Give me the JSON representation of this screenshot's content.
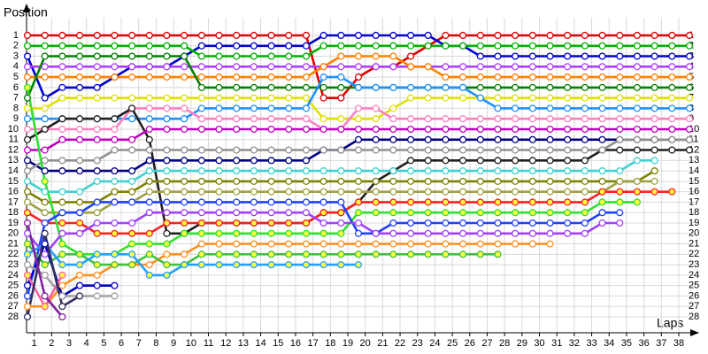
{
  "chart_data": {
    "type": "line",
    "y_label": "Position",
    "x_label": "Laps",
    "x": [
      0,
      1,
      2,
      3,
      4,
      5,
      6,
      7,
      8,
      9,
      10,
      11,
      12,
      13,
      14,
      15,
      16,
      17,
      18,
      19,
      20,
      21,
      22,
      23,
      24,
      25,
      26,
      27,
      28,
      29,
      30,
      31,
      32,
      33,
      34,
      35,
      36,
      37,
      38
    ],
    "xlim": [
      0,
      38
    ],
    "ylim": [
      0,
      29.4
    ],
    "y_reversed": true,
    "grid": true,
    "xticks": [
      1,
      2,
      3,
      4,
      5,
      6,
      7,
      8,
      9,
      10,
      11,
      12,
      13,
      14,
      15,
      16,
      17,
      18,
      19,
      20,
      21,
      22,
      23,
      24,
      25,
      26,
      27,
      28,
      29,
      30,
      31,
      32,
      33,
      34,
      35,
      36,
      37,
      38
    ],
    "yticks": [
      1,
      2,
      3,
      4,
      5,
      6,
      7,
      8,
      9,
      10,
      11,
      12,
      13,
      14,
      15,
      16,
      17,
      18,
      19,
      20,
      21,
      22,
      23,
      24,
      25,
      26,
      27,
      28
    ],
    "series": [
      {
        "color": "#e00000",
        "values": [
          1,
          1,
          1,
          1,
          1,
          1,
          1,
          1,
          1,
          1,
          1,
          1,
          1,
          1,
          1,
          1,
          1,
          7,
          7,
          5,
          4,
          4,
          3,
          2,
          1,
          1,
          1,
          1,
          1,
          1,
          1,
          1,
          1,
          1,
          1,
          1,
          1,
          1,
          1
        ]
      },
      {
        "color": "#0000d0",
        "values": [
          3,
          7,
          6,
          6,
          6,
          5,
          4,
          4,
          4,
          3,
          2,
          2,
          2,
          2,
          2,
          2,
          2,
          1,
          1,
          1,
          1,
          1,
          1,
          1,
          2,
          2,
          3,
          3,
          3,
          3,
          3,
          3,
          3,
          3,
          3,
          3,
          3,
          3,
          3
        ]
      },
      {
        "color": "#00b000",
        "values": [
          2,
          2,
          2,
          2,
          2,
          2,
          2,
          2,
          2,
          2,
          3,
          3,
          3,
          3,
          3,
          3,
          3,
          2,
          2,
          2,
          2,
          2,
          2,
          2,
          2,
          2,
          2,
          2,
          2,
          2,
          2,
          2,
          2,
          2,
          2,
          2,
          2,
          2,
          2
        ]
      },
      {
        "color": "#b040ff",
        "values": [
          4,
          4,
          4,
          4,
          4,
          4,
          4,
          4,
          4,
          4,
          4,
          4,
          4,
          4,
          4,
          4,
          4,
          4,
          4,
          4,
          4,
          4,
          4,
          4,
          4,
          4,
          4,
          4,
          4,
          4,
          4,
          4,
          4,
          4,
          4,
          4,
          4,
          4,
          4
        ]
      },
      {
        "color": "#ff8000",
        "values": [
          5,
          5,
          5,
          5,
          5,
          5,
          5,
          5,
          5,
          5,
          5,
          5,
          5,
          5,
          5,
          5,
          5,
          4,
          3,
          3,
          3,
          3,
          4,
          4,
          5,
          5,
          5,
          5,
          5,
          5,
          5,
          5,
          5,
          5,
          5,
          5,
          5,
          5,
          5
        ]
      },
      {
        "color": "#008000",
        "values": [
          7,
          3,
          3,
          3,
          3,
          3,
          3,
          3,
          3,
          3,
          6,
          6,
          6,
          6,
          6,
          6,
          6,
          6,
          6,
          6,
          6,
          6,
          6,
          6,
          6,
          6,
          6,
          6,
          6,
          6,
          6,
          6,
          6,
          6,
          6,
          6,
          6,
          6,
          6
        ]
      },
      {
        "color": "#e0e000",
        "values": [
          8,
          8,
          7,
          7,
          7,
          7,
          7,
          7,
          7,
          7,
          7,
          7,
          7,
          7,
          7,
          7,
          7,
          9,
          9,
          9,
          9,
          8,
          7,
          7,
          7,
          7,
          7,
          7,
          7,
          7,
          7,
          7,
          7,
          7,
          7,
          7,
          7,
          7,
          7
        ]
      },
      {
        "color": "#1e90ff",
        "values": [
          9,
          9,
          9,
          9,
          9,
          9,
          9,
          9,
          9,
          9,
          8,
          8,
          8,
          8,
          8,
          8,
          8,
          5,
          5,
          6,
          6,
          6,
          6,
          6,
          6,
          6,
          7,
          8,
          8,
          8,
          8,
          8,
          8,
          8,
          8,
          8,
          8,
          8,
          8
        ]
      },
      {
        "color": "#ff80c0",
        "values": [
          10,
          10,
          10,
          10,
          10,
          10,
          8,
          8,
          8,
          8,
          9,
          9,
          9,
          9,
          9,
          9,
          9,
          10,
          10,
          8,
          8,
          9,
          9,
          9,
          9,
          9,
          9,
          9,
          9,
          9,
          9,
          9,
          9,
          9,
          9,
          9,
          9,
          9,
          9
        ]
      },
      {
        "color": "#202020",
        "values": [
          11,
          10,
          9,
          9,
          9,
          9,
          8,
          11,
          20,
          20,
          19,
          19,
          19,
          19,
          19,
          19,
          19,
          18,
          18,
          17,
          15,
          14,
          13,
          13,
          13,
          13,
          13,
          13,
          13,
          13,
          13,
          13,
          13,
          12,
          12,
          12,
          12,
          12,
          12
        ]
      },
      {
        "color": "#c000c0",
        "values": [
          12,
          12,
          11,
          11,
          11,
          11,
          11,
          10,
          10,
          10,
          10,
          10,
          10,
          10,
          10,
          10,
          10,
          10,
          10,
          10,
          10,
          10,
          10,
          10,
          10,
          10,
          10,
          10,
          10,
          10,
          10,
          10,
          10,
          10,
          10,
          10,
          10,
          10,
          10
        ]
      },
      {
        "color": "#000080",
        "values": [
          13,
          14,
          14,
          14,
          14,
          14,
          14,
          13,
          13,
          13,
          13,
          13,
          13,
          13,
          13,
          13,
          13,
          12,
          12,
          11,
          11,
          11,
          11,
          11,
          11,
          11,
          11,
          11,
          11,
          11,
          11,
          11,
          11,
          11,
          11,
          11,
          11,
          11,
          11
        ]
      },
      {
        "color": "#909090",
        "values": [
          14,
          13,
          13,
          13,
          13,
          12,
          12,
          12,
          12,
          12,
          12,
          12,
          12,
          12,
          12,
          12,
          12,
          12,
          12,
          12,
          12,
          12,
          12,
          12,
          12,
          12,
          12,
          12,
          12,
          12,
          12,
          12,
          12,
          12,
          11,
          11,
          11,
          11,
          11
        ]
      },
      {
        "color": "#40d0d0",
        "values": [
          15,
          16,
          16,
          16,
          15,
          15,
          15,
          14,
          14,
          14,
          14,
          14,
          14,
          14,
          14,
          14,
          14,
          14,
          14,
          14,
          14,
          14,
          14,
          14,
          14,
          14,
          14,
          14,
          14,
          14,
          14,
          14,
          14,
          14,
          14,
          13,
          13,
          null,
          null
        ]
      },
      {
        "color": "#808000",
        "values": [
          16,
          17,
          17,
          17,
          17,
          16,
          16,
          15,
          15,
          15,
          15,
          15,
          15,
          15,
          15,
          15,
          15,
          15,
          15,
          15,
          15,
          15,
          15,
          15,
          15,
          15,
          15,
          15,
          15,
          15,
          15,
          15,
          15,
          15,
          15,
          15,
          14,
          null,
          null
        ]
      },
      {
        "color": "#a0a040",
        "values": [
          17,
          18,
          18,
          18,
          18,
          17,
          17,
          16,
          16,
          16,
          16,
          16,
          16,
          16,
          16,
          16,
          16,
          16,
          16,
          16,
          16,
          16,
          16,
          16,
          16,
          16,
          16,
          16,
          16,
          16,
          16,
          16,
          16,
          16,
          15,
          15,
          15,
          null,
          null
        ]
      },
      {
        "color": "#ff2020",
        "marker_fill": "#ffff40",
        "values": [
          18,
          19,
          19,
          19,
          20,
          20,
          20,
          20,
          19,
          19,
          19,
          19,
          19,
          19,
          19,
          19,
          19,
          18,
          18,
          17,
          17,
          17,
          17,
          17,
          17,
          17,
          17,
          17,
          17,
          17,
          17,
          17,
          17,
          16,
          16,
          16,
          16,
          16,
          null
        ]
      },
      {
        "color": "#30e030",
        "marker_fill": "#ffff40",
        "values": [
          6,
          15,
          21,
          22,
          22,
          22,
          21,
          21,
          21,
          20,
          20,
          20,
          20,
          20,
          20,
          20,
          20,
          20,
          20,
          18,
          18,
          18,
          18,
          18,
          18,
          18,
          18,
          18,
          18,
          18,
          18,
          18,
          18,
          17,
          17,
          17,
          null,
          null,
          null
        ]
      },
      {
        "color": "#2040ff",
        "values": [
          26,
          19,
          18,
          18,
          17,
          17,
          17,
          17,
          17,
          17,
          17,
          17,
          17,
          17,
          17,
          17,
          17,
          17,
          17,
          20,
          20,
          19,
          19,
          19,
          19,
          19,
          19,
          19,
          19,
          19,
          19,
          19,
          19,
          18,
          18,
          null,
          null,
          null,
          null
        ]
      },
      {
        "color": "#a040ff",
        "values": [
          20,
          22,
          20,
          20,
          19,
          19,
          19,
          18,
          18,
          18,
          18,
          18,
          18,
          18,
          18,
          18,
          18,
          19,
          19,
          19,
          20,
          20,
          20,
          20,
          20,
          20,
          20,
          20,
          20,
          20,
          20,
          20,
          20,
          19,
          19,
          null,
          null,
          null,
          null
        ]
      },
      {
        "color": "#ff9020",
        "values": [
          27,
          27,
          25,
          24,
          24,
          23,
          23,
          23,
          22,
          22,
          21,
          21,
          21,
          21,
          21,
          21,
          21,
          21,
          21,
          21,
          21,
          21,
          21,
          21,
          21,
          21,
          21,
          21,
          21,
          21,
          21,
          null,
          null,
          null,
          null,
          null,
          null,
          null,
          null
        ]
      },
      {
        "color": "#40c040",
        "marker_fill": "#ffff40",
        "values": [
          21,
          23,
          22,
          22,
          23,
          23,
          23,
          22,
          23,
          23,
          22,
          22,
          22,
          22,
          22,
          22,
          22,
          22,
          22,
          22,
          22,
          22,
          22,
          22,
          22,
          22,
          22,
          22,
          null,
          null,
          null,
          null,
          null,
          null,
          null,
          null,
          null,
          null,
          null
        ]
      },
      {
        "color": "#20a0ff",
        "marker_fill": "#ffff40",
        "values": [
          22,
          21,
          23,
          23,
          22,
          22,
          22,
          24,
          24,
          23,
          23,
          23,
          23,
          23,
          23,
          23,
          23,
          23,
          23,
          23,
          null,
          null,
          null,
          null,
          null,
          null,
          null,
          null,
          null,
          null,
          null,
          null,
          null,
          null,
          null,
          null,
          null,
          null,
          null
        ]
      },
      {
        "color": "#0000c0",
        "values": [
          25,
          21,
          26,
          25,
          25,
          25,
          null,
          null,
          null,
          null,
          null,
          null,
          null,
          null,
          null,
          null,
          null,
          null,
          null,
          null,
          null,
          null,
          null,
          null,
          null,
          null,
          null,
          null,
          null,
          null,
          null,
          null,
          null,
          null,
          null,
          null,
          null,
          null,
          null
        ]
      },
      {
        "color": "#a0a0a0",
        "values": [
          23,
          24,
          26,
          26,
          26,
          26,
          null,
          null,
          null,
          null,
          null,
          null,
          null,
          null,
          null,
          null,
          null,
          null,
          null,
          null,
          null,
          null,
          null,
          null,
          null,
          null,
          null,
          null,
          null,
          null,
          null,
          null,
          null,
          null,
          null,
          null,
          null,
          null,
          null
        ]
      },
      {
        "color": "#ff60a0",
        "marker_fill": "#ffff40",
        "values": [
          24,
          27,
          24,
          null,
          null,
          null,
          null,
          null,
          null,
          null,
          null,
          null,
          null,
          null,
          null,
          null,
          null,
          null,
          null,
          null,
          null,
          null,
          null,
          null,
          null,
          null,
          null,
          null,
          null,
          null,
          null,
          null,
          null,
          null,
          null,
          null,
          null,
          null,
          null
        ]
      },
      {
        "color": "#303060",
        "values": [
          28,
          20,
          27,
          26,
          null,
          null,
          null,
          null,
          null,
          null,
          null,
          null,
          null,
          null,
          null,
          null,
          null,
          null,
          null,
          null,
          null,
          null,
          null,
          null,
          null,
          null,
          null,
          null,
          null,
          null,
          null,
          null,
          null,
          null,
          null,
          null,
          null,
          null,
          null
        ]
      },
      {
        "color": "#8020a0",
        "values": [
          19,
          26,
          28,
          null,
          null,
          null,
          null,
          null,
          null,
          null,
          null,
          null,
          null,
          null,
          null,
          null,
          null,
          null,
          null,
          null,
          null,
          null,
          null,
          null,
          null,
          null,
          null,
          null,
          null,
          null,
          null,
          null,
          null,
          null,
          null,
          null,
          null,
          null,
          null
        ]
      }
    ]
  }
}
